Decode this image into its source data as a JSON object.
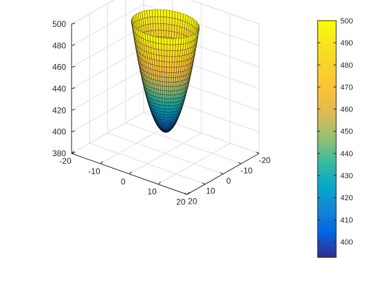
{
  "chart_data": {
    "type": "surface",
    "title": "",
    "xlabel": "",
    "ylabel": "",
    "zlabel": "",
    "function": "z = x^2 + y^2 + 400 (paraboloid, clipped at z <= 500)",
    "x_range": [
      -20,
      20
    ],
    "y_range": [
      -20,
      20
    ],
    "zlim": [
      380,
      500
    ],
    "x_ticks": [
      -20,
      -10,
      0,
      10,
      20
    ],
    "y_ticks": [
      -20,
      -10,
      0,
      10,
      20
    ],
    "z_ticks": [
      380,
      400,
      420,
      440,
      460,
      480,
      500
    ],
    "surface": {
      "z_min": 400,
      "z_max": 500,
      "radius_max": 10
    },
    "colorbar": {
      "colormap": "parula",
      "clim": [
        393,
        500
      ],
      "ticks": [
        400,
        410,
        420,
        430,
        440,
        450,
        460,
        470,
        480,
        490,
        500
      ]
    },
    "grid": true,
    "colors": {
      "low": "#352a87",
      "mid": "#1db4a8",
      "high": "#f9fb0e",
      "edge": "#000000"
    }
  }
}
